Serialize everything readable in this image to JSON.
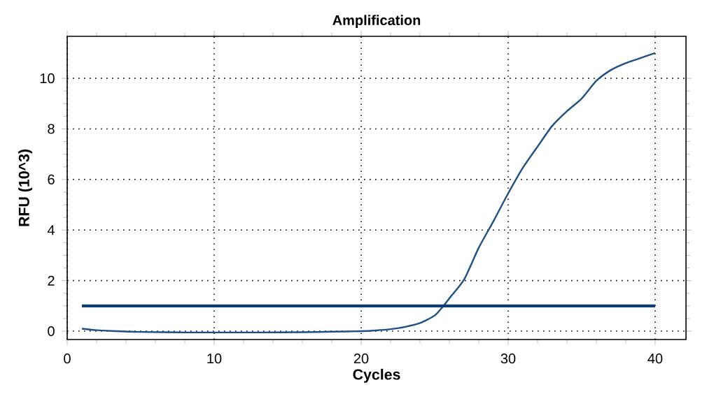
{
  "chart_data": {
    "type": "line",
    "title": "Amplification",
    "xlabel": "Cycles",
    "ylabel": "RFU (10^3)",
    "xlim": [
      0,
      42.1
    ],
    "ylim": [
      -0.33,
      11.66
    ],
    "xticks": [
      0,
      10,
      20,
      30,
      40
    ],
    "yticks": [
      0,
      2,
      4,
      6,
      8,
      10
    ],
    "grid": true,
    "series": [
      {
        "color": "#1f4f85",
        "x": [
          1,
          2,
          3,
          5,
          8,
          10,
          13,
          16,
          18,
          20,
          21,
          22,
          23,
          24,
          25,
          25.6,
          26,
          27,
          28,
          29,
          30,
          31,
          32,
          33,
          34,
          35,
          36,
          37,
          38,
          39,
          40
        ],
        "values": [
          0.1,
          0.04,
          0.01,
          -0.03,
          -0.05,
          -0.05,
          -0.05,
          -0.04,
          -0.02,
          0.0,
          0.03,
          0.08,
          0.17,
          0.32,
          0.62,
          1.0,
          1.3,
          2.04,
          3.3,
          4.35,
          5.45,
          6.46,
          7.3,
          8.12,
          8.7,
          9.2,
          9.9,
          10.33,
          10.6,
          10.8,
          11.0
        ]
      },
      {
        "color": "#0d3f75",
        "x": [
          1,
          40
        ],
        "values": [
          1,
          1
        ]
      }
    ]
  }
}
